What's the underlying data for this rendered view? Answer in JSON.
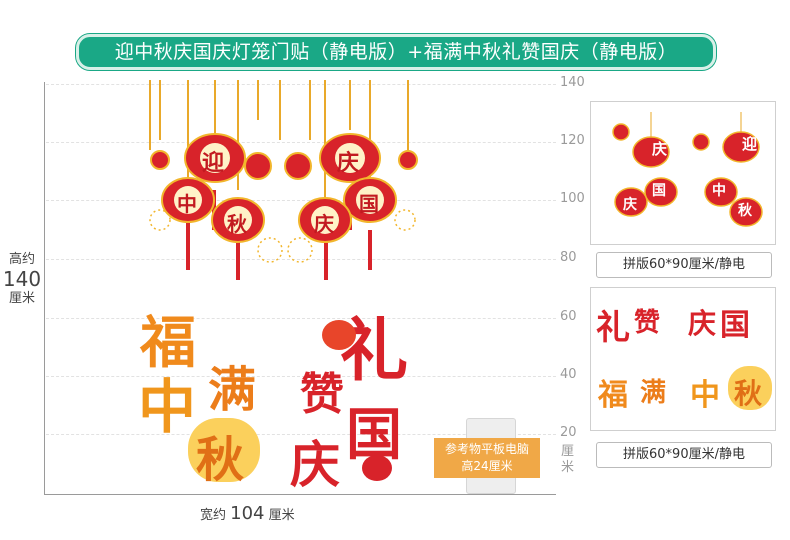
{
  "title": "迎中秋庆国庆灯笼门贴（静电版）+福满中秋礼赞国庆（静电版）",
  "height_label": {
    "prefix": "高约",
    "value": "140",
    "unit": "厘米"
  },
  "width_label": {
    "prefix": "宽约",
    "value": "104",
    "unit": "厘米"
  },
  "ruler_ticks": [
    "140",
    "120",
    "100",
    "80",
    "60",
    "40",
    "20"
  ],
  "ruler_unit": "厘米",
  "reference": {
    "line1": "参考物平板电脑",
    "line2": "高24厘米"
  },
  "lanterns_left": [
    "迎",
    "中",
    "秋"
  ],
  "lanterns_right": [
    "庆",
    "国",
    "庆"
  ],
  "greeting_left": {
    "fu": "福",
    "man": "满",
    "zhong": "中",
    "qiu": "秋"
  },
  "greeting_right": {
    "li": "礼",
    "zan": "赞",
    "guo": "国",
    "qing": "庆"
  },
  "panel1": {
    "caption": "拼版60*90厘米/静电",
    "chars": [
      "庆",
      "迎",
      "国",
      "中",
      "庆",
      "秋"
    ]
  },
  "panel2": {
    "caption": "拼版60*90厘米/静电",
    "chars": [
      "礼",
      "赞",
      "国",
      "庆",
      "福",
      "满",
      "中",
      "秋"
    ]
  },
  "colors": {
    "title_bg": "#1aa886",
    "lantern_red": "#d8232a",
    "gold": "#f2b62c",
    "orange": "#f0a847"
  }
}
